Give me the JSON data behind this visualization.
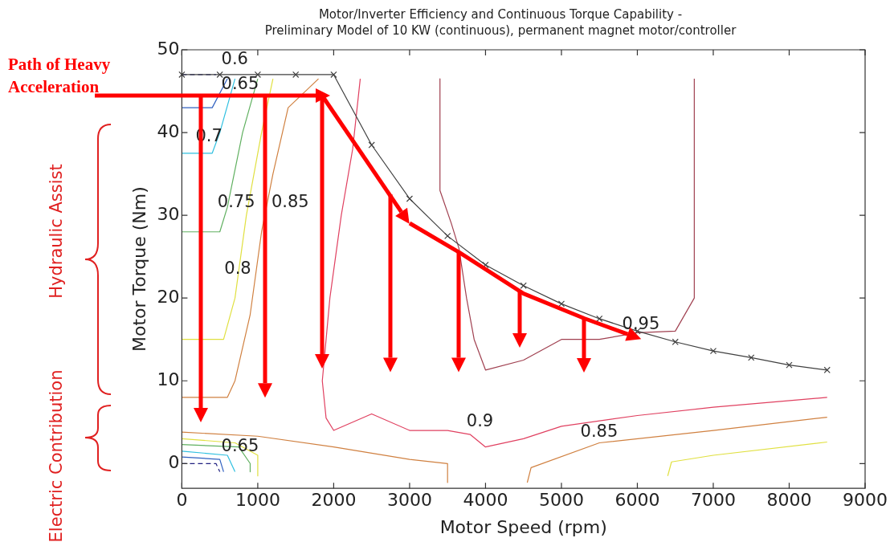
{
  "chart_data": {
    "type": "line",
    "title": "Motor/Inverter Efficiency and Continuous Torque Capability -",
    "subtitle": "Preliminary Model of 10 KW (continuous), permanent magnet motor/controller",
    "xlabel": "Motor Speed (rpm)",
    "ylabel": "Motor Torque (Nm)",
    "xlim": [
      0,
      9000
    ],
    "ylim": [
      -3,
      50
    ],
    "xticks": [
      0,
      1000,
      2000,
      3000,
      4000,
      5000,
      6000,
      7000,
      8000,
      9000
    ],
    "yticks": [
      0,
      10,
      20,
      30,
      40,
      50
    ],
    "grid": false,
    "legend": false,
    "series": [
      {
        "color": "#404040",
        "marker": "cross",
        "x": [
          0,
          500,
          1000,
          1500,
          2000,
          2500,
          3000,
          3500,
          4000,
          4500,
          5000,
          5500,
          6000,
          6500,
          7000,
          7500,
          8000,
          8500
        ],
        "values": [
          47,
          47,
          47,
          47,
          47,
          38.5,
          32,
          27.5,
          24,
          21.5,
          19.3,
          17.5,
          16,
          14.7,
          13.6,
          12.8,
          11.9,
          11.3
        ]
      },
      {
        "color": "#a04050",
        "x": [
          3400,
          3400,
          3550,
          3650,
          3750,
          3850,
          4000,
          4500,
          5000,
          5500,
          6000,
          6500,
          6750,
          6750
        ],
        "values": [
          46.5,
          33,
          29,
          26,
          20,
          15,
          11.3,
          12.5,
          15,
          15,
          15.8,
          16,
          20,
          46.5
        ]
      },
      {
        "color": "#e04060",
        "x": [
          2350,
          2250,
          2100,
          1950,
          1850,
          1900,
          2000,
          2500,
          3000,
          3500,
          3800,
          4000,
          4500,
          5000,
          6000,
          7000,
          8500
        ],
        "values": [
          46.5,
          38,
          30,
          20,
          10,
          5.5,
          4,
          6,
          4,
          4,
          3.5,
          2,
          3,
          4.5,
          5.8,
          6.8,
          8
        ]
      },
      {
        "color": "#d08040",
        "x": [
          1800,
          1400,
          1200,
          1050,
          900,
          700,
          600,
          0,
          null,
          0,
          1000,
          2000,
          3000,
          3500,
          3500,
          null,
          4550,
          4600,
          5500,
          7000,
          8500
        ],
        "values": [
          46.5,
          43,
          35,
          28,
          18,
          10,
          8,
          8,
          null,
          3.8,
          3.3,
          2,
          0.5,
          0,
          -2.3,
          null,
          -2.3,
          -0.5,
          2.5,
          4,
          5.6
        ]
      },
      {
        "color": "#e0e040",
        "x": [
          1200,
          1050,
          850,
          700,
          550,
          0,
          null,
          0,
          700,
          1000,
          1000,
          null,
          6400,
          6450,
          7000,
          8500
        ],
        "values": [
          46.5,
          40,
          30,
          20,
          15,
          15,
          null,
          3,
          2.5,
          1,
          -1.5,
          null,
          -1.5,
          0.2,
          1,
          2.6
        ]
      },
      {
        "color": "#60b060",
        "x": [
          1000,
          800,
          600,
          500,
          0,
          null,
          0,
          750,
          900,
          900
        ],
        "values": [
          46.5,
          40,
          31,
          28,
          28,
          null,
          2.3,
          2,
          0,
          -1
        ]
      },
      {
        "color": "#30c0e0",
        "x": [
          700,
          500,
          400,
          0,
          null,
          0,
          600,
          700
        ],
        "values": [
          46.5,
          40,
          37.5,
          37.5,
          null,
          1.5,
          1,
          -1
        ]
      },
      {
        "color": "#3060c0",
        "x": [
          600,
          400,
          0,
          null,
          0,
          500,
          550
        ],
        "values": [
          46.5,
          43,
          43,
          null,
          0.8,
          0.5,
          -1
        ]
      },
      {
        "color": "#202080",
        "line_style": "dashed",
        "x": [
          0,
          450,
          null,
          0,
          450,
          500
        ],
        "values": [
          47,
          47,
          null,
          0,
          0,
          -1
        ]
      }
    ],
    "annotations": [
      "0.6",
      "0.65",
      "0.7",
      "0.75",
      "0.85",
      "0.8",
      "0.95",
      "0.9",
      "0.85",
      "0.65",
      "Path of Heavy Acceleration",
      "Hydraulic Assist",
      "Electric Contribution"
    ]
  }
}
